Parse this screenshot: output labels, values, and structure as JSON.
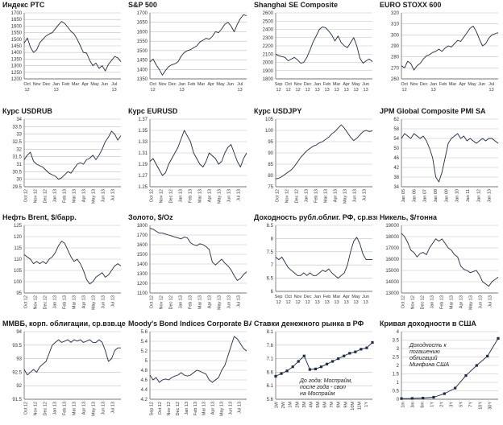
{
  "colors": {
    "line": "#1f2a44",
    "grid": "#bfbfbf",
    "axis": "#555555",
    "text": "#333333"
  },
  "chart_data": [
    {
      "id": "rts",
      "type": "line",
      "title": "Индекс РТС",
      "ylim": [
        1200,
        1700
      ],
      "yticks": [
        1200,
        1250,
        1300,
        1350,
        1400,
        1450,
        1500,
        1550,
        1600,
        1650,
        1700
      ],
      "xlabels": [
        "Oct",
        "Nov",
        "Dec",
        "Jan",
        "Feb",
        "Mar",
        "Apr",
        "May",
        "Jun",
        "Jul"
      ],
      "xlabels2": [
        "12",
        "",
        "",
        "13",
        "",
        "",
        "",
        "",
        "",
        "13"
      ],
      "xrot": false,
      "values": [
        1470,
        1510,
        1440,
        1400,
        1420,
        1475,
        1500,
        1525,
        1540,
        1550,
        1580,
        1610,
        1635,
        1620,
        1590,
        1560,
        1540,
        1500,
        1450,
        1400,
        1395,
        1340,
        1300,
        1320,
        1280,
        1300,
        1260,
        1310,
        1340,
        1370,
        1360,
        1330
      ]
    },
    {
      "id": "sp500",
      "type": "line",
      "title": "S&P 500",
      "ylim": [
        1350,
        1700
      ],
      "yticks": [
        1350,
        1400,
        1450,
        1500,
        1550,
        1600,
        1650,
        1700
      ],
      "xlabels": [
        "Oct",
        "Nov",
        "Dec",
        "Jan",
        "Feb",
        "Mar",
        "Apr",
        "May",
        "Jun",
        "Jul"
      ],
      "xlabels2": [
        "12",
        "",
        "",
        "13",
        "",
        "",
        "",
        "",
        "",
        "13"
      ],
      "xrot": false,
      "values": [
        1440,
        1455,
        1425,
        1400,
        1370,
        1395,
        1415,
        1425,
        1430,
        1440,
        1470,
        1490,
        1500,
        1505,
        1515,
        1525,
        1545,
        1555,
        1565,
        1560,
        1575,
        1600,
        1595,
        1615,
        1640,
        1650,
        1630,
        1600,
        1640,
        1670,
        1690,
        1685
      ]
    },
    {
      "id": "shanghai",
      "type": "line",
      "title": "Shanghai SE Composite",
      "ylim": [
        1800,
        2600
      ],
      "yticks": [
        1800,
        1900,
        2000,
        2100,
        2200,
        2300,
        2400,
        2500,
        2600
      ],
      "xlabels": [
        "Sep",
        "Oct",
        "Nov",
        "Dec",
        "Jan",
        "Feb",
        "Mar",
        "Apr",
        "May",
        "Jun"
      ],
      "xlabels2": [
        "12",
        "12",
        "12",
        "12",
        "13",
        "13",
        "13",
        "13",
        "13",
        "13"
      ],
      "xrot": false,
      "values": [
        2100,
        2080,
        2070,
        2060,
        2020,
        2040,
        2060,
        2030,
        1990,
        2000,
        2060,
        2150,
        2250,
        2320,
        2400,
        2430,
        2420,
        2380,
        2330,
        2260,
        2320,
        2240,
        2200,
        2180,
        2240,
        2300,
        2200,
        2050,
        1990,
        2020,
        2040,
        2010
      ]
    },
    {
      "id": "eurostoxx",
      "type": "line",
      "title": "EURO STOXX 600",
      "ylim": [
        260,
        320
      ],
      "yticks": [
        260,
        270,
        280,
        290,
        300,
        310,
        320
      ],
      "xlabels": [
        "Oct",
        "Nov",
        "Dec",
        "Jan",
        "Feb",
        "Mar",
        "Apr",
        "May",
        "Jun",
        "Jul"
      ],
      "xlabels2": [
        "12",
        "",
        "",
        "13",
        "",
        "",
        "",
        "",
        "",
        "13"
      ],
      "xrot": false,
      "values": [
        272,
        270,
        276,
        274,
        268,
        272,
        274,
        278,
        281,
        282,
        284,
        285,
        287,
        285,
        288,
        290,
        289,
        292,
        295,
        294,
        298,
        302,
        306,
        308,
        303,
        296,
        290,
        292,
        297,
        300,
        301,
        302
      ]
    },
    {
      "id": "usdrub",
      "type": "line",
      "title": "Курс USDRUB",
      "ylim": [
        29.5,
        34.0
      ],
      "yticks": [
        29.5,
        30.0,
        30.5,
        31.0,
        31.5,
        32.0,
        32.5,
        33.0,
        33.5,
        34.0
      ],
      "xlabels": [
        "Oct 12",
        "Nov 12",
        "Dec 12",
        "Jan 13",
        "Feb 13",
        "Mar 13",
        "Apr 13",
        "May 13",
        "Jun 13",
        "Jul 13"
      ],
      "xrot": true,
      "values": [
        31.3,
        31.6,
        31.8,
        31.2,
        31.0,
        30.9,
        30.8,
        30.6,
        30.4,
        30.3,
        30.2,
        30.0,
        30.1,
        30.3,
        30.5,
        30.4,
        30.7,
        31.0,
        31.1,
        31.0,
        31.3,
        31.4,
        31.6,
        31.3,
        31.6,
        32.0,
        32.5,
        32.8,
        33.2,
        33.0,
        32.6,
        32.9
      ]
    },
    {
      "id": "eurusd",
      "type": "line",
      "title": "Курс EURUSD",
      "ylim": [
        1.25,
        1.37
      ],
      "yticks": [
        1.25,
        1.27,
        1.29,
        1.31,
        1.33,
        1.35,
        1.37
      ],
      "xlabels": [
        "Oct 12",
        "Nov 12",
        "Dec 12",
        "Jan 13",
        "Feb 13",
        "Mar 13",
        "Apr 13",
        "May 13",
        "Jun 13",
        "Jul 13"
      ],
      "xrot": true,
      "values": [
        1.295,
        1.3,
        1.29,
        1.28,
        1.27,
        1.275,
        1.29,
        1.3,
        1.31,
        1.32,
        1.335,
        1.35,
        1.34,
        1.33,
        1.31,
        1.3,
        1.29,
        1.285,
        1.295,
        1.31,
        1.305,
        1.3,
        1.29,
        1.295,
        1.31,
        1.32,
        1.325,
        1.31,
        1.295,
        1.285,
        1.3,
        1.31
      ]
    },
    {
      "id": "usdjpy",
      "type": "line",
      "title": "Курс USDJPY",
      "ylim": [
        75,
        105
      ],
      "yticks": [
        75,
        80,
        85,
        90,
        95,
        100,
        105
      ],
      "xlabels": [
        "Oct 12",
        "Nov 12",
        "Dec 12",
        "Jan 13",
        "Feb 13",
        "Mar 13",
        "Apr 13",
        "May 13",
        "Jun 13",
        "Jul 13"
      ],
      "xrot": true,
      "values": [
        78.5,
        78.8,
        79.5,
        80.5,
        81.5,
        82.5,
        84.0,
        86.0,
        88.0,
        89.5,
        91.0,
        92.0,
        93.0,
        93.5,
        94.5,
        95.0,
        96.0,
        97.0,
        98.5,
        99.5,
        101.0,
        102.5,
        101.0,
        99.0,
        97.0,
        95.5,
        96.5,
        98.0,
        99.5,
        100.0,
        99.5,
        99.8
      ]
    },
    {
      "id": "jpmpmi",
      "type": "line",
      "title": "JPM Global Composite PMI SA",
      "ylim": [
        34,
        62
      ],
      "yticks": [
        34,
        38,
        42,
        46,
        50,
        54,
        58,
        62
      ],
      "xlabels": [
        "Jan 05",
        "Jan 06",
        "Jan 07",
        "Jan 08",
        "Jan 09",
        "Jan 10",
        "Jan 11",
        "Jan 12",
        "Jan 13"
      ],
      "xrot": true,
      "values": [
        54,
        56,
        55,
        54,
        56,
        55,
        54,
        55,
        53,
        50,
        46,
        38,
        36,
        40,
        46,
        52,
        54,
        55,
        56,
        54,
        55,
        53,
        54,
        53,
        52,
        53,
        54,
        53,
        54,
        54,
        53,
        52
      ]
    },
    {
      "id": "brent",
      "type": "line",
      "title": "Нефть Brent, $/барр.",
      "ylim": [
        95,
        125
      ],
      "yticks": [
        95,
        100,
        105,
        110,
        115,
        120,
        125
      ],
      "xlabels": [
        "Oct 12",
        "Nov 12",
        "Dec 12",
        "Jan 13",
        "Feb 13",
        "Mar 13",
        "Apr 13",
        "May 13",
        "Jun 13",
        "Jul 13"
      ],
      "xrot": true,
      "values": [
        112,
        111,
        110,
        108,
        109,
        108,
        109,
        108,
        110,
        111,
        113,
        116,
        118,
        117,
        114,
        111,
        109,
        110,
        108,
        105,
        101,
        99,
        100,
        102,
        103,
        104,
        102,
        103,
        105,
        107,
        108,
        107
      ]
    },
    {
      "id": "gold",
      "type": "line",
      "title": "Золото, $/Oz",
      "ylim": [
        1100,
        1800
      ],
      "yticks": [
        1100,
        1200,
        1300,
        1400,
        1500,
        1600,
        1700,
        1800
      ],
      "xlabels": [
        "Oct 12",
        "Nov 12",
        "Dec 12",
        "Jan 13",
        "Feb 13",
        "Mar 13",
        "Apr 13",
        "May 13",
        "Jun 13",
        "Jul 13"
      ],
      "xrot": true,
      "values": [
        1770,
        1760,
        1740,
        1720,
        1720,
        1710,
        1700,
        1690,
        1680,
        1670,
        1660,
        1680,
        1670,
        1620,
        1600,
        1590,
        1610,
        1600,
        1580,
        1550,
        1420,
        1390,
        1420,
        1450,
        1410,
        1380,
        1340,
        1280,
        1230,
        1250,
        1290,
        1320
      ]
    },
    {
      "id": "ofz",
      "type": "line",
      "title": "Доходность рубл.облиг. РФ, ср.взвеш., %",
      "ylim": [
        6.0,
        8.5
      ],
      "yticks": [
        6.0,
        6.5,
        7.0,
        7.5,
        8.0,
        8.5
      ],
      "xlabels": [
        "Sep",
        "Oct",
        "Nov",
        "Dec",
        "Jan",
        "Feb",
        "Mar",
        "Apr",
        "May",
        "Jun"
      ],
      "xlabels2": [
        "12",
        "12",
        "12",
        "12",
        "13",
        "13",
        "13",
        "13",
        "13",
        "13"
      ],
      "xrot": false,
      "values": [
        7.3,
        7.2,
        7.3,
        7.1,
        6.9,
        6.8,
        6.7,
        6.6,
        6.6,
        6.7,
        6.6,
        6.7,
        6.6,
        6.6,
        6.7,
        6.8,
        6.75,
        6.85,
        6.7,
        6.6,
        6.5,
        6.6,
        6.7,
        7.0,
        7.5,
        7.9,
        8.05,
        7.8,
        7.4,
        7.2,
        7.2,
        7.2
      ]
    },
    {
      "id": "nickel",
      "type": "line",
      "title": "Никель, $/тонна",
      "ylim": [
        13000,
        19000
      ],
      "yticks": [
        13000,
        14000,
        15000,
        16000,
        17000,
        18000,
        19000
      ],
      "xlabels": [
        "Oct 12",
        "Nov 12",
        "Dec 12",
        "Jan 13",
        "Feb 13",
        "Mar 13",
        "Apr 13",
        "May 13",
        "Jun 13",
        "Jul 13"
      ],
      "xrot": true,
      "values": [
        18300,
        18000,
        17500,
        16800,
        16600,
        16200,
        16500,
        16600,
        16400,
        17000,
        17400,
        17800,
        17600,
        17800,
        17400,
        17000,
        16800,
        16400,
        16200,
        15400,
        15100,
        15000,
        14800,
        14900,
        15000,
        14600,
        14000,
        13800,
        13600,
        14000,
        14200,
        14400
      ]
    },
    {
      "id": "mmvb",
      "type": "line",
      "title": "ММВБ, корп. облигации, ср.взв.цена",
      "ylim": [
        91.5,
        94.0
      ],
      "yticks": [
        91.5,
        92.0,
        92.5,
        93.0,
        93.5,
        94.0
      ],
      "xlabels": [
        "Oct 12",
        "Nov 12",
        "Dec 12",
        "Jan 13",
        "Feb 13",
        "Mar 13",
        "Apr 13",
        "May 13",
        "Jun 13",
        "Jul 13"
      ],
      "xrot": true,
      "values": [
        92.6,
        92.4,
        92.5,
        92.6,
        92.5,
        92.7,
        92.8,
        92.9,
        93.2,
        93.5,
        93.6,
        93.7,
        93.6,
        93.65,
        93.7,
        93.6,
        93.7,
        93.65,
        93.7,
        93.6,
        93.65,
        93.7,
        93.6,
        93.6,
        93.7,
        93.6,
        93.3,
        92.9,
        93.0,
        93.3,
        93.4,
        93.4
      ]
    },
    {
      "id": "moodys",
      "type": "line",
      "title": "Moody's Bond Indices Corporate BAA",
      "ylim": [
        4.2,
        5.6
      ],
      "yticks": [
        4.2,
        4.4,
        4.6,
        4.8,
        5.0,
        5.2,
        5.4,
        5.6
      ],
      "xlabels": [
        "Sep 12",
        "Oct 12",
        "Nov 12",
        "Dec 12",
        "Jan 13",
        "Feb 13",
        "Mar 13",
        "Apr 13",
        "May 13",
        "Jun 13",
        "Jul 13"
      ],
      "xrot": true,
      "values": [
        4.7,
        4.6,
        4.65,
        4.55,
        4.6,
        4.62,
        4.6,
        4.65,
        4.68,
        4.7,
        4.75,
        4.7,
        4.68,
        4.7,
        4.75,
        4.8,
        4.78,
        4.75,
        4.72,
        4.6,
        4.55,
        4.6,
        4.65,
        4.8,
        4.9,
        5.1,
        5.3,
        5.5,
        5.45,
        5.35,
        5.25,
        5.2
      ]
    },
    {
      "id": "moneyrates",
      "type": "line",
      "markers": true,
      "title": "Ставки денежного рынка в РФ",
      "ylim": [
        5.6,
        8.1
      ],
      "yticks": [
        5.6,
        6.1,
        6.6,
        7.1,
        7.6,
        8.1
      ],
      "xlabels": [
        "1W",
        "2W",
        "1M",
        "2M",
        "3M",
        "4M",
        "5M",
        "6M",
        "7M",
        "8M",
        "9M",
        "10M",
        "11M",
        "1Y"
      ],
      "xrot": true,
      "values": [
        6.45,
        6.55,
        6.65,
        6.8,
        7.0,
        7.2,
        6.7,
        6.72,
        6.8,
        6.9,
        7.0,
        7.1,
        7.2,
        7.3,
        7.35,
        7.45,
        7.5,
        7.7
      ],
      "annotation": [
        "До года: Моспрайм,",
        "после года - своп",
        "на Моспрайм"
      ]
    },
    {
      "id": "ustcurve",
      "type": "line",
      "markers": true,
      "title": "Кривая доходности в США",
      "ylim": [
        0,
        4
      ],
      "yticks": [
        0,
        0.5,
        1.0,
        1.5,
        2.0,
        2.5,
        3.0,
        3.5,
        4.0
      ],
      "xlabels": [
        "1m",
        "3m",
        "6m",
        "1Y",
        "2Y",
        "3Y",
        "5Y",
        "7Y",
        "10Y",
        "30Y"
      ],
      "xrot": true,
      "values": [
        0.04,
        0.05,
        0.07,
        0.12,
        0.33,
        0.66,
        1.4,
        2.0,
        2.55,
        3.6
      ],
      "annotation": [
        "Доходность к",
        "погашению",
        "облигаций",
        "Минфина США"
      ]
    }
  ]
}
